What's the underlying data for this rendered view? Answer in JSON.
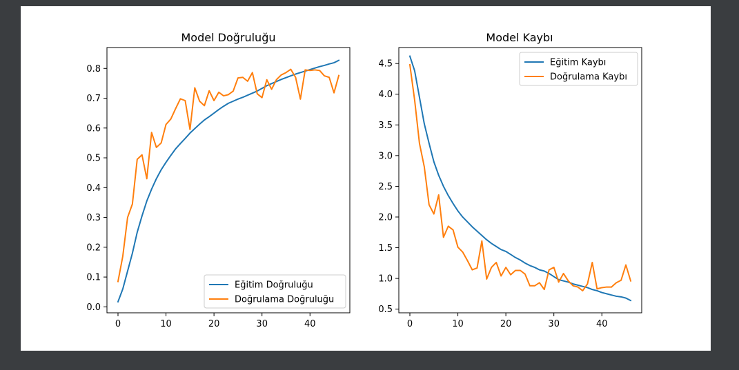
{
  "chart_data": [
    {
      "type": "line",
      "title": "Model Doğruluğu",
      "xlabel": "",
      "ylabel": "",
      "xlim": [
        -2.3,
        48.3
      ],
      "ylim": [
        -0.02,
        0.87
      ],
      "xticks": [
        0,
        10,
        20,
        30,
        40
      ],
      "yticks": [
        0.0,
        0.1,
        0.2,
        0.3,
        0.4,
        0.5,
        0.6,
        0.7,
        0.8
      ],
      "ytick_labels": [
        "0.0",
        "0.1",
        "0.2",
        "0.3",
        "0.4",
        "0.5",
        "0.6",
        "0.7",
        "0.8"
      ],
      "grid": false,
      "legend_position": "lower-right",
      "x": [
        0,
        1,
        2,
        3,
        4,
        5,
        6,
        7,
        8,
        9,
        10,
        11,
        12,
        13,
        14,
        15,
        16,
        17,
        18,
        19,
        20,
        21,
        22,
        23,
        24,
        25,
        26,
        27,
        28,
        29,
        30,
        31,
        32,
        33,
        34,
        35,
        36,
        37,
        38,
        39,
        40,
        41,
        42,
        43,
        44,
        45,
        46
      ],
      "series": [
        {
          "name": "Eğitim Doğruluğu",
          "color": "#1f77b4",
          "values": [
            0.017,
            0.06,
            0.12,
            0.18,
            0.25,
            0.305,
            0.355,
            0.395,
            0.43,
            0.46,
            0.485,
            0.508,
            0.53,
            0.548,
            0.565,
            0.583,
            0.598,
            0.613,
            0.627,
            0.638,
            0.65,
            0.662,
            0.673,
            0.683,
            0.69,
            0.697,
            0.703,
            0.71,
            0.717,
            0.724,
            0.733,
            0.742,
            0.749,
            0.756,
            0.763,
            0.769,
            0.775,
            0.781,
            0.786,
            0.791,
            0.796,
            0.801,
            0.806,
            0.81,
            0.815,
            0.819,
            0.827
          ]
        },
        {
          "name": "Doğrulama Doğruluğu",
          "color": "#ff7f0e",
          "values": [
            0.085,
            0.17,
            0.3,
            0.345,
            0.495,
            0.51,
            0.43,
            0.585,
            0.535,
            0.55,
            0.612,
            0.63,
            0.665,
            0.698,
            0.692,
            0.595,
            0.735,
            0.69,
            0.675,
            0.725,
            0.692,
            0.72,
            0.708,
            0.712,
            0.724,
            0.768,
            0.77,
            0.757,
            0.786,
            0.715,
            0.702,
            0.762,
            0.73,
            0.762,
            0.778,
            0.786,
            0.797,
            0.77,
            0.697,
            0.795,
            0.793,
            0.795,
            0.793,
            0.775,
            0.77,
            0.718,
            0.776
          ]
        }
      ]
    },
    {
      "type": "line",
      "title": "Model Kaybı",
      "xlabel": "",
      "ylabel": "",
      "xlim": [
        -2.3,
        48.3
      ],
      "ylim": [
        0.44,
        4.76
      ],
      "xticks": [
        0,
        10,
        20,
        30,
        40
      ],
      "yticks": [
        0.5,
        1.0,
        1.5,
        2.0,
        2.5,
        3.0,
        3.5,
        4.0,
        4.5
      ],
      "ytick_labels": [
        "0.5",
        "1.0",
        "1.5",
        "2.0",
        "2.5",
        "3.0",
        "3.5",
        "4.0",
        "4.5"
      ],
      "grid": false,
      "legend_position": "upper-right",
      "x": [
        0,
        1,
        2,
        3,
        4,
        5,
        6,
        7,
        8,
        9,
        10,
        11,
        12,
        13,
        14,
        15,
        16,
        17,
        18,
        19,
        20,
        21,
        22,
        23,
        24,
        25,
        26,
        27,
        28,
        29,
        30,
        31,
        32,
        33,
        34,
        35,
        36,
        37,
        38,
        39,
        40,
        41,
        42,
        43,
        44,
        45,
        46
      ],
      "series": [
        {
          "name": "Eğitim Kaybı",
          "color": "#1f77b4",
          "values": [
            4.62,
            4.38,
            3.95,
            3.52,
            3.2,
            2.9,
            2.68,
            2.5,
            2.35,
            2.22,
            2.1,
            2.0,
            1.92,
            1.84,
            1.77,
            1.7,
            1.63,
            1.57,
            1.52,
            1.47,
            1.44,
            1.39,
            1.34,
            1.3,
            1.25,
            1.21,
            1.18,
            1.14,
            1.12,
            1.08,
            1.03,
            0.98,
            0.96,
            0.94,
            0.91,
            0.89,
            0.87,
            0.85,
            0.82,
            0.8,
            0.77,
            0.75,
            0.73,
            0.71,
            0.7,
            0.68,
            0.64
          ]
        },
        {
          "name": "Doğrulama Kaybı",
          "color": "#ff7f0e",
          "values": [
            4.48,
            3.9,
            3.2,
            2.82,
            2.2,
            2.05,
            2.36,
            1.67,
            1.85,
            1.79,
            1.51,
            1.43,
            1.29,
            1.14,
            1.17,
            1.61,
            0.99,
            1.18,
            1.26,
            1.04,
            1.18,
            1.06,
            1.13,
            1.13,
            1.07,
            0.88,
            0.88,
            0.93,
            0.82,
            1.14,
            1.18,
            0.94,
            1.08,
            0.96,
            0.88,
            0.86,
            0.8,
            0.91,
            1.26,
            0.83,
            0.85,
            0.86,
            0.86,
            0.93,
            0.97,
            1.22,
            0.96
          ]
        }
      ]
    }
  ]
}
